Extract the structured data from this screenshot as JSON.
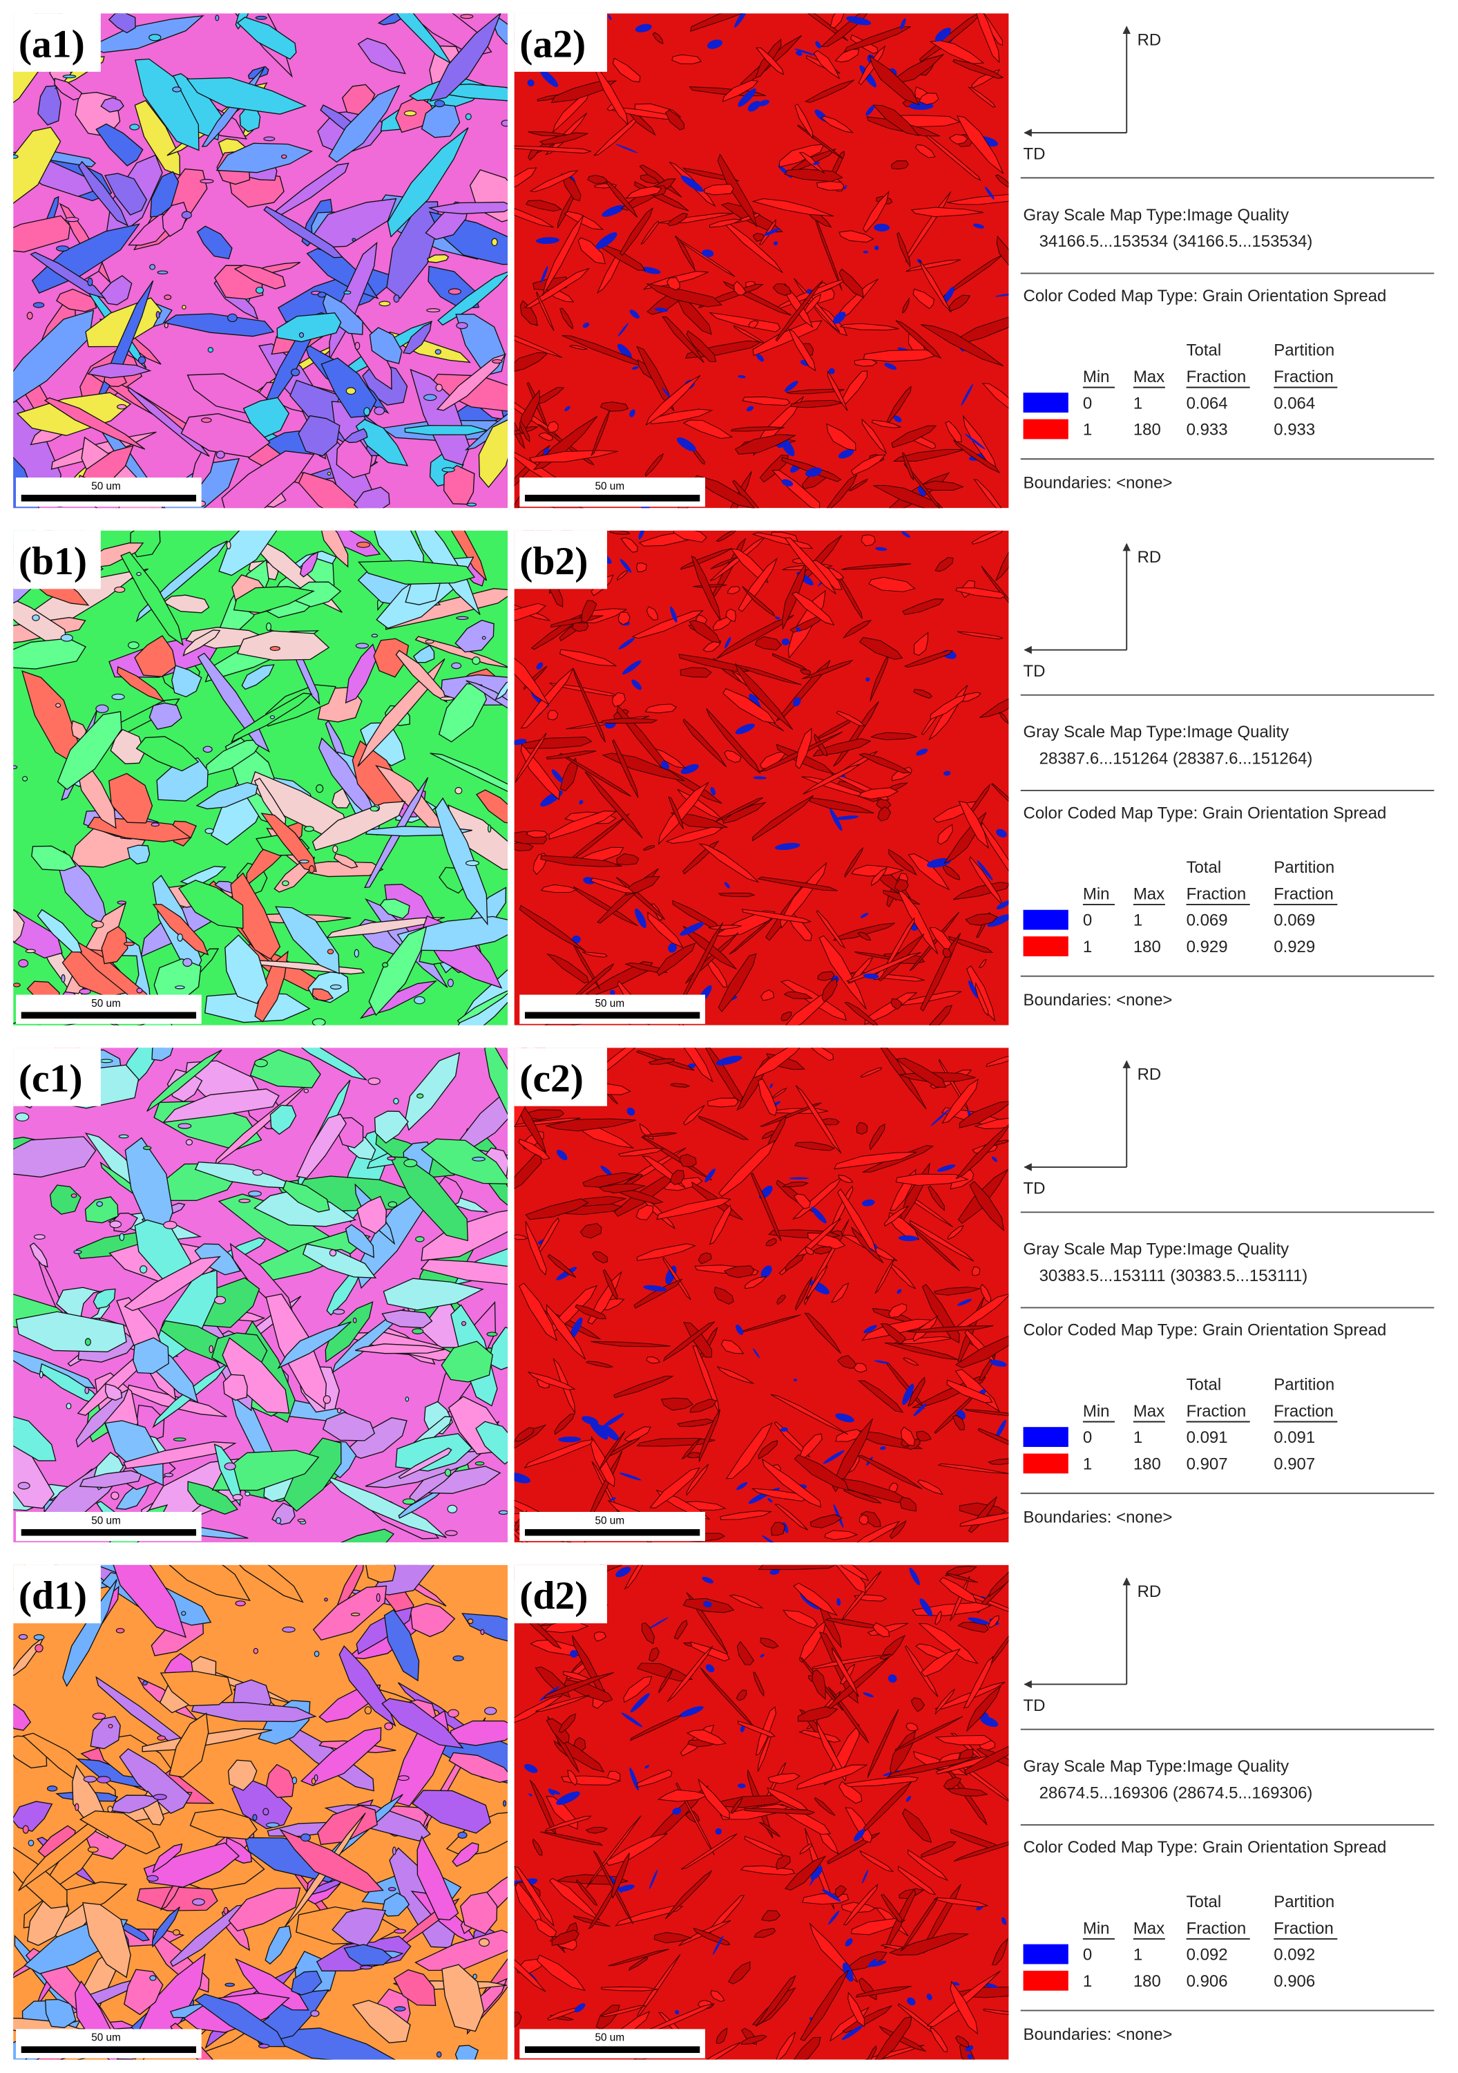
{
  "panels": [
    {
      "label_left": "(a1)",
      "label_right": "(a2)",
      "scale_left": "50 um",
      "scale_right": "50 um",
      "rd": "RD",
      "td": "TD",
      "gray_title": "Gray Scale Map Type:Image Quality",
      "gray_range": "34166.5...153534 (34166.5...153534)",
      "color_title": "Color Coded Map Type: Grain Orientation Spread",
      "columns": [
        [
          "Min"
        ],
        [
          "Max"
        ],
        [
          "Total",
          "Fraction"
        ],
        [
          "Partition",
          "Fraction"
        ]
      ],
      "rows": [
        [
          0,
          1,
          0.064,
          0.064
        ],
        [
          1,
          180,
          0.933,
          0.933
        ]
      ],
      "boundaries": "Boundaries: <none>"
    },
    {
      "label_left": "(b1)",
      "label_right": "(b2)",
      "scale_left": "50 um",
      "scale_right": "50 um",
      "rd": "RD",
      "td": "TD",
      "gray_title": "Gray Scale Map Type:Image Quality",
      "gray_range": "28387.6...151264 (28387.6...151264)",
      "color_title": "Color Coded Map Type: Grain Orientation Spread",
      "columns": [
        [
          "Min"
        ],
        [
          "Max"
        ],
        [
          "Total",
          "Fraction"
        ],
        [
          "Partition",
          "Fraction"
        ]
      ],
      "rows": [
        [
          0,
          1,
          0.069,
          0.069
        ],
        [
          1,
          180,
          0.929,
          0.929
        ]
      ],
      "boundaries": "Boundaries: <none>"
    },
    {
      "label_left": "(c1)",
      "label_right": "(c2)",
      "scale_left": "50 um",
      "scale_right": "50 um",
      "rd": "RD",
      "td": "TD",
      "gray_title": "Gray Scale Map Type:Image Quality",
      "gray_range": "30383.5...153111 (30383.5...153111)",
      "color_title": "Color Coded Map Type: Grain Orientation Spread",
      "columns": [
        [
          "Min"
        ],
        [
          "Max"
        ],
        [
          "Total",
          "Fraction"
        ],
        [
          "Partition",
          "Fraction"
        ]
      ],
      "rows": [
        [
          0,
          1,
          0.091,
          0.091
        ],
        [
          1,
          180,
          0.907,
          0.907
        ]
      ],
      "boundaries": "Boundaries: <none>"
    },
    {
      "label_left": "(d1)",
      "label_right": "(d2)",
      "scale_left": "50 um",
      "scale_right": "50 um",
      "rd": "RD",
      "td": "TD",
      "gray_title": "Gray Scale Map Type:Image Quality",
      "gray_range": "28674.5...169306 (28674.5...169306)",
      "color_title": "Color Coded Map Type: Grain Orientation Spread",
      "columns": [
        [
          "Min"
        ],
        [
          "Max"
        ],
        [
          "Total",
          "Fraction"
        ],
        [
          "Partition",
          "Fraction"
        ]
      ],
      "rows": [
        [
          0,
          1,
          0.092,
          0.092
        ],
        [
          1,
          180,
          0.906,
          0.906
        ]
      ],
      "boundaries": "Boundaries: <none>"
    }
  ]
}
